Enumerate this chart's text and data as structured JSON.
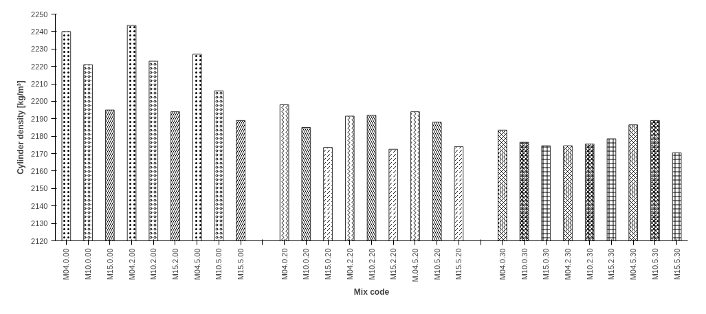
{
  "chart_data": {
    "type": "bar",
    "xlabel": "Mix code",
    "ylabel": "Cylinder density [kg/m³]",
    "categories": [
      "M04.0.00",
      "M10.0.00",
      "M15.0.00",
      "M04.2.00",
      "M10.2.00",
      "M15.2.00",
      "M04.5.00",
      "M10.5.00",
      "M15.5.00",
      null,
      "M04.0.20",
      "M10.0.20",
      "M15.0.20",
      "M04.2.20",
      "M10.2.20",
      "M15.2.20",
      "M.04.5.20",
      "M10.5.20",
      "M15.5.20",
      null,
      "M04.0.30",
      "M10.0.30",
      "M15.0.30",
      "M04.2.30",
      "M10.2.30",
      "M15.2.30",
      "M04.5.30",
      "M10.5.30",
      "M15.5.30"
    ],
    "values": [
      2240,
      2221,
      2195,
      2243.5,
      2223,
      2194,
      2227,
      2206,
      2189,
      null,
      2198,
      2185,
      2173.5,
      2191.5,
      2192,
      2172.5,
      2194,
      2188,
      2174,
      null,
      2183.5,
      2176.5,
      2174.5,
      2174.5,
      2175.5,
      2178.5,
      2186.5,
      2189,
      2170.5
    ],
    "color": "#ffffff",
    "ylim": [
      2120,
      2250
    ],
    "yticks": [
      2120,
      2130,
      2140,
      2150,
      2160,
      2170,
      2180,
      2190,
      2200,
      2210,
      2220,
      2230,
      2240,
      2250
    ],
    "grid": false
  }
}
